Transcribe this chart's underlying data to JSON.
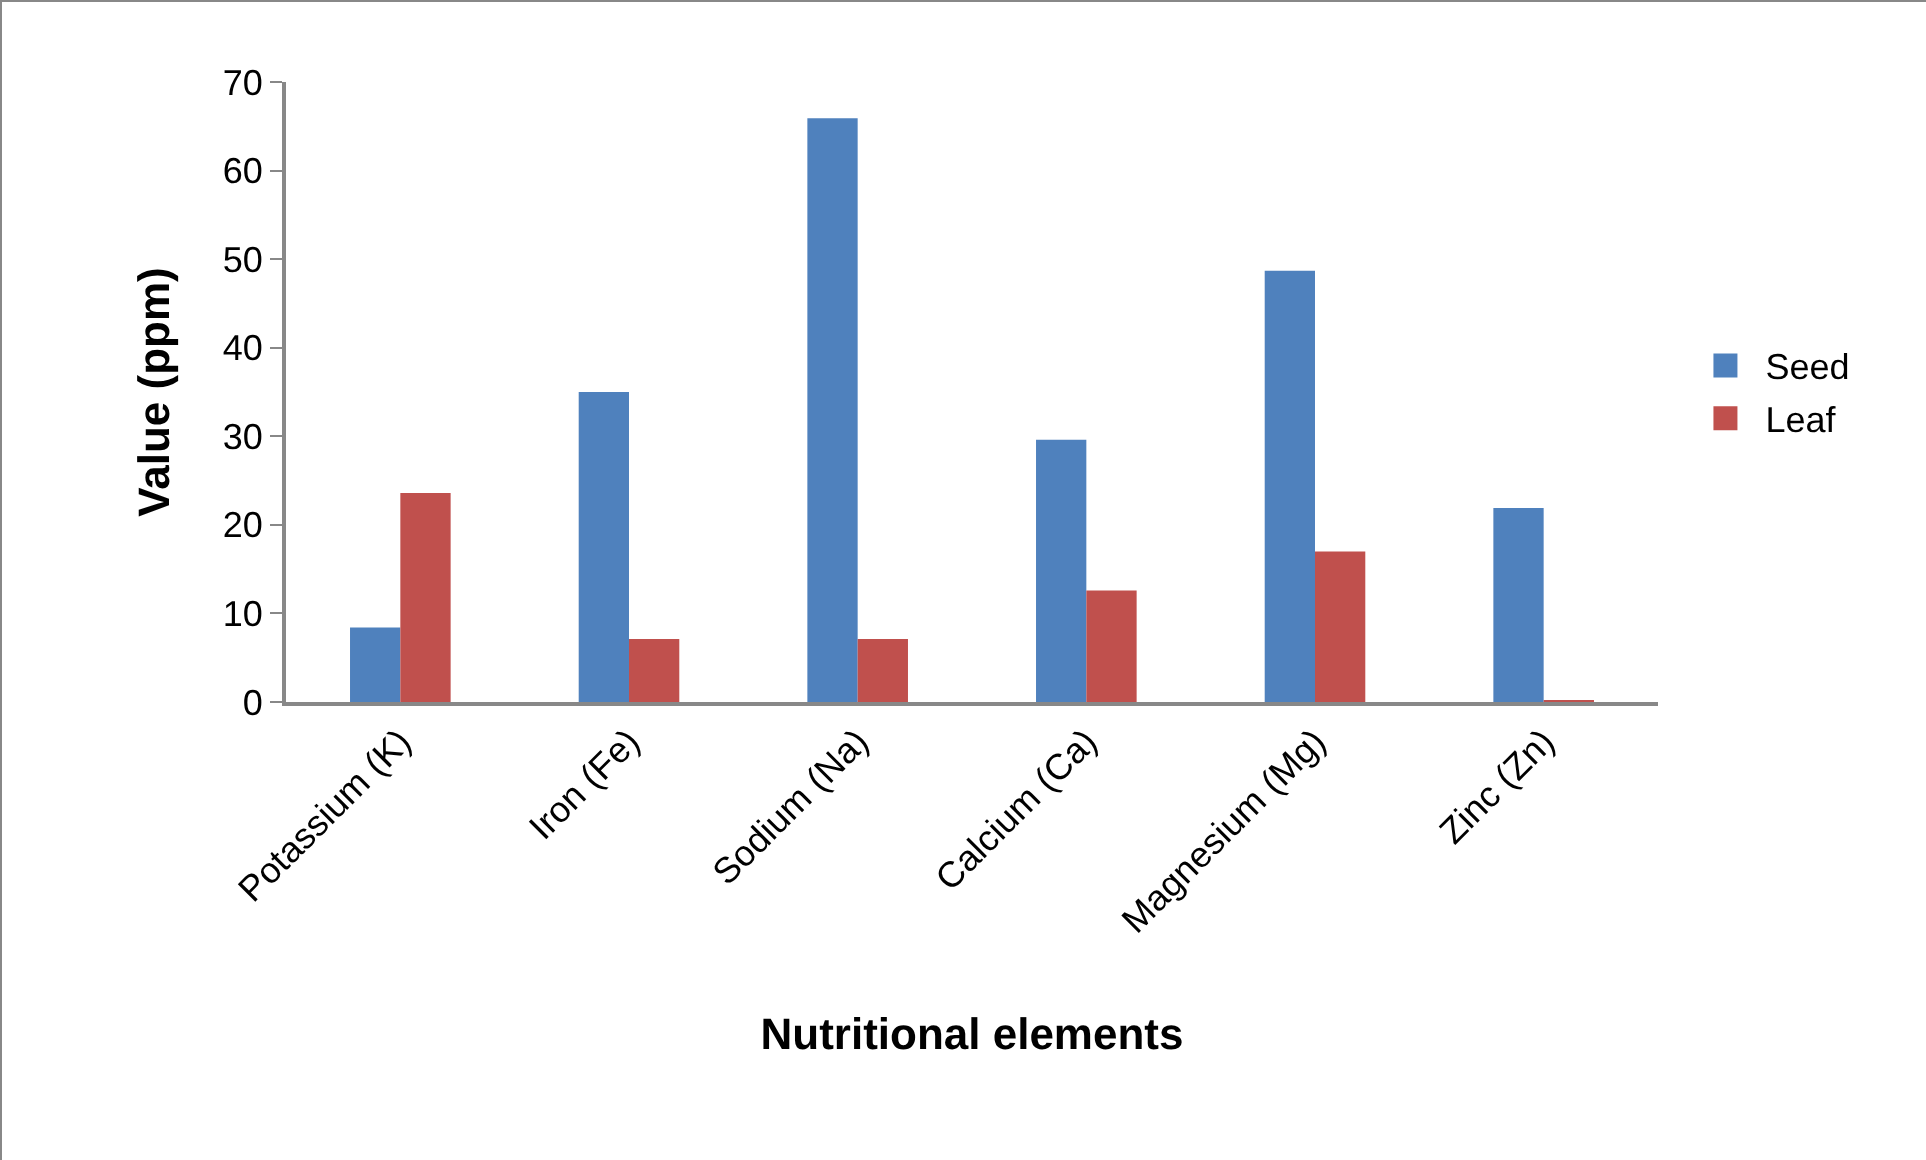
{
  "chart_data": {
    "type": "bar",
    "xlabel": "Nutritional elements",
    "ylabel": "Value (ppm)",
    "categories": [
      "Potassium (K)",
      "Iron (Fe)",
      "Sodium (Na)",
      "Calcium (Ca)",
      "Magnesium (Mg)",
      "Zinc (Zn)"
    ],
    "series": [
      {
        "name": "Seed",
        "color": "#4f81bd",
        "values": [
          8.4,
          35,
          65.9,
          29.6,
          48.7,
          21.9
        ]
      },
      {
        "name": "Leaf",
        "color": "#c0504d",
        "values": [
          23.6,
          7.1,
          7.1,
          12.6,
          17,
          0.2
        ]
      }
    ],
    "ylim": [
      0,
      70
    ],
    "yticks": [
      0,
      10,
      20,
      30,
      40,
      50,
      60,
      70
    ],
    "grid": false,
    "legend": "right"
  }
}
